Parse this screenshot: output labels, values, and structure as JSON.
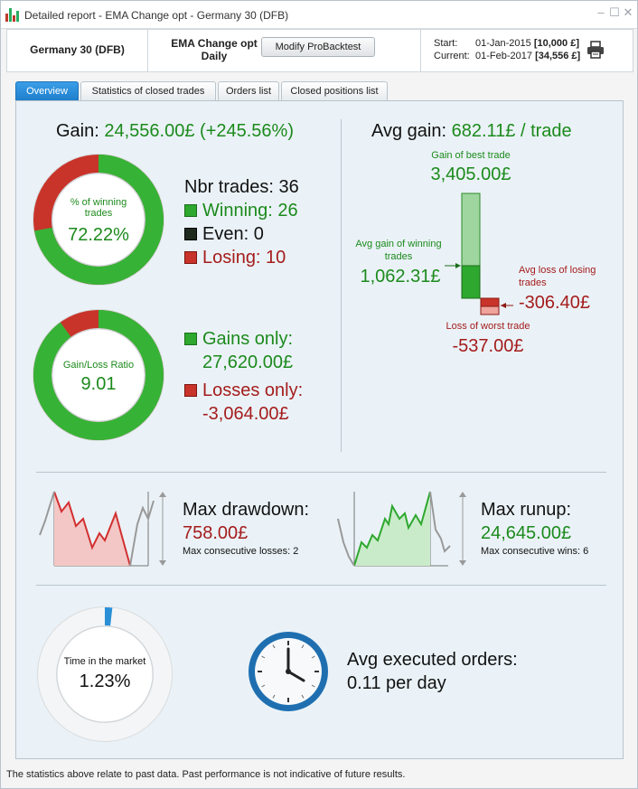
{
  "window": {
    "title": "Detailed report - EMA Change opt - Germany 30 (DFB)"
  },
  "header": {
    "instrument": "Germany 30 (DFB)",
    "strategy_name": "EMA Change opt",
    "timeframe": "Daily",
    "modify_button": "Modify ProBacktest",
    "start_label": "Start:",
    "start_date": "01-Jan-2015",
    "start_capital": "[10,000 £]",
    "current_label": "Current:",
    "current_date": "01-Feb-2017",
    "current_capital": "[34,556 £]"
  },
  "tabs": [
    {
      "label": "Overview",
      "active": true
    },
    {
      "label": "Statistics of closed trades",
      "active": false
    },
    {
      "label": "Orders list",
      "active": false
    },
    {
      "label": "Closed positions list",
      "active": false
    }
  ],
  "overview": {
    "gain_label": "Gain:",
    "gain_value": "24,556.00£ (+245.56%)",
    "winning_donut": {
      "label": "% of winning trades",
      "value": "72.22%",
      "fraction": 0.7222
    },
    "trades": {
      "count_label": "Nbr trades: 36",
      "winning_label": "Winning: 26",
      "even_label": "Even: 0",
      "losing_label": "Losing: 10"
    },
    "ratio_donut": {
      "label": "Gain/Loss Ratio",
      "value": "9.01",
      "gain_fraction": 0.9
    },
    "gains_only_label": "Gains only:",
    "gains_only_value": "27,620.00£",
    "losses_only_label": "Losses only:",
    "losses_only_value": "-3,064.00£",
    "avg_gain_label": "Avg gain:",
    "avg_gain_value": "682.11£ / trade",
    "best_trade_label": "Gain of best trade",
    "best_trade_value": "3,405.00£",
    "avg_win_label": "Avg gain of winning trades",
    "avg_win_value": "1,062.31£",
    "avg_loss_label": "Avg loss of losing trades",
    "avg_loss_value": "-306.40£",
    "worst_trade_label": "Loss of worst trade",
    "worst_trade_value": "-537.00£",
    "drawdown_label": "Max drawdown:",
    "drawdown_value": "758.00£",
    "consec_losses_label": "Max consecutive losses: 2",
    "runup_label": "Max runup:",
    "runup_value": "24,645.00£",
    "consec_wins_label": "Max consecutive wins: 6",
    "time_market_label": "Time in the market",
    "time_market_value": "1.23%",
    "time_market_fraction": 0.0123,
    "avg_orders_label": "Avg executed orders:",
    "avg_orders_value": "0.11 per day"
  },
  "footer": {
    "disclaimer": "The statistics above relate to past data. Past performance is not indicative of future results."
  },
  "colors": {
    "gain": "#1c8a1c",
    "loss": "#a51c1c",
    "accent": "#1f7fcc"
  }
}
